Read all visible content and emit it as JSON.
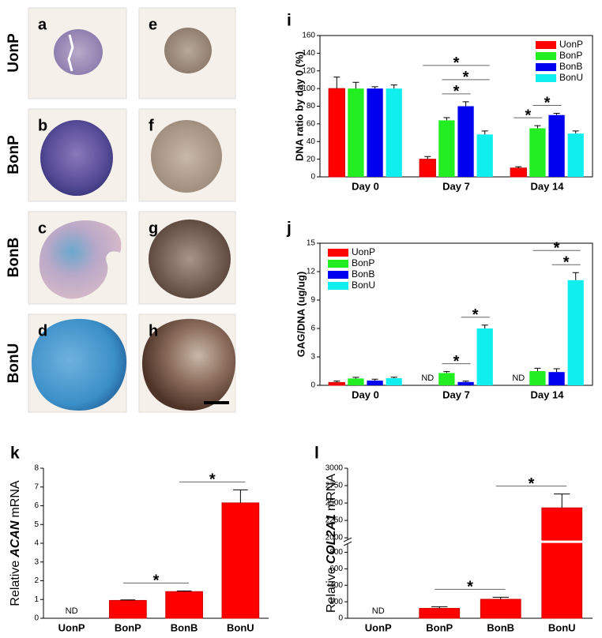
{
  "images": {
    "row_labels": [
      "UonP",
      "BonP",
      "BonB",
      "BonU"
    ],
    "panel_labels": [
      "a",
      "b",
      "c",
      "d",
      "e",
      "f",
      "g",
      "h"
    ]
  },
  "chart_data": [
    {
      "type": "bar",
      "panel": "i",
      "ylabel": "DNA ratio by day 0 (%)",
      "categories": [
        "Day 0",
        "Day 7",
        "Day 14"
      ],
      "series": [
        {
          "name": "UonP",
          "color": "#ff0000",
          "values": [
            100,
            20,
            10
          ],
          "errors": [
            13,
            3,
            1.5
          ]
        },
        {
          "name": "BonP",
          "color": "#22ee22",
          "values": [
            100,
            64,
            55
          ],
          "errors": [
            7,
            3,
            3
          ]
        },
        {
          "name": "BonB",
          "color": "#0000ee",
          "values": [
            100,
            80,
            70
          ],
          "errors": [
            2,
            5,
            2
          ]
        },
        {
          "name": "BonU",
          "color": "#11eeee",
          "values": [
            100,
            48,
            49
          ],
          "errors": [
            4,
            4,
            3
          ]
        }
      ],
      "ylim": [
        0,
        160
      ],
      "yticks": [
        0,
        20,
        40,
        60,
        80,
        100,
        120,
        140,
        160
      ],
      "legend": "upper right",
      "frame": "box",
      "significance": [
        {
          "category": "Day 7",
          "pair": [
            "BonP",
            "BonB"
          ],
          "label": "*"
        },
        {
          "category": "Day 7",
          "pair": [
            "BonP",
            "BonU"
          ],
          "label": "*"
        },
        {
          "category": "Day 7",
          "pair": [
            "UonP",
            "BonU"
          ],
          "label": "*"
        },
        {
          "category": "Day 14",
          "pair": [
            "UonP",
            "BonP"
          ],
          "label": "*"
        },
        {
          "category": "Day 14",
          "pair": [
            "BonP",
            "BonB"
          ],
          "label": "*"
        }
      ]
    },
    {
      "type": "bar",
      "panel": "j",
      "ylabel": "GAG/DNA (ug/ug)",
      "categories": [
        "Day 0",
        "Day 7",
        "Day 14"
      ],
      "series": [
        {
          "name": "UonP",
          "color": "#ff0000",
          "values": [
            0.3,
            null,
            null
          ],
          "errors": [
            0.15,
            null,
            null
          ],
          "value_labels": [
            null,
            "ND",
            "ND"
          ]
        },
        {
          "name": "BonP",
          "color": "#22ee22",
          "values": [
            0.72,
            1.3,
            1.5
          ],
          "errors": [
            0.12,
            0.15,
            0.3
          ]
        },
        {
          "name": "BonB",
          "color": "#0000ee",
          "values": [
            0.5,
            0.35,
            1.4
          ],
          "errors": [
            0.15,
            0.1,
            0.35
          ]
        },
        {
          "name": "BonU",
          "color": "#11eeee",
          "values": [
            0.75,
            6.0,
            11.1
          ],
          "errors": [
            0.1,
            0.35,
            0.8
          ]
        }
      ],
      "ylim": [
        0,
        15
      ],
      "yticks": [
        0,
        3,
        6,
        9,
        12,
        15
      ],
      "legend": "upper left",
      "frame": "box",
      "significance": [
        {
          "category": "Day 7",
          "pair": [
            "BonP",
            "BonB"
          ],
          "label": "*"
        },
        {
          "category": "Day 7",
          "pair": [
            "BonB",
            "BonU"
          ],
          "label": "*"
        },
        {
          "category": "Day 14",
          "pair": [
            "BonB",
            "BonU"
          ],
          "label": "*"
        },
        {
          "category": "Day 14",
          "pair": [
            "BonP",
            "BonU"
          ],
          "label": "*"
        }
      ]
    },
    {
      "type": "bar",
      "panel": "k",
      "ylabel": [
        "Relative",
        "ACAN",
        "mRNA"
      ],
      "categories": [
        "UonP",
        "BonP",
        "BonB",
        "BonU"
      ],
      "values": [
        null,
        0.95,
        1.42,
        6.15
      ],
      "errors": [
        null,
        0.03,
        0.04,
        0.7
      ],
      "value_labels": [
        "ND",
        null,
        null,
        null
      ],
      "color": "#ff0000",
      "ylim": [
        0,
        8
      ],
      "yticks": [
        0,
        1,
        2,
        3,
        4,
        5,
        6,
        7,
        8
      ],
      "frame": "axes",
      "significance": [
        {
          "pair": [
            "BonP",
            "BonB"
          ],
          "label": "*"
        },
        {
          "pair": [
            "BonB",
            "BonU"
          ],
          "label": "*"
        }
      ]
    },
    {
      "type": "bar",
      "panel": "l",
      "ylabel": [
        "Relative",
        "COL2A1",
        "mRNA"
      ],
      "categories": [
        "UonP",
        "BonP",
        "BonB",
        "BonU"
      ],
      "values": [
        null,
        120,
        230,
        2430
      ],
      "errors": [
        null,
        20,
        25,
        200
      ],
      "value_labels": [
        "ND",
        null,
        null,
        null
      ],
      "color": "#ff0000",
      "ylim": [
        0,
        3000
      ],
      "ybreak": [
        880,
        2000
      ],
      "yticks": [
        0,
        200,
        400,
        600,
        800,
        2000,
        2250,
        2500,
        2750,
        3000
      ],
      "frame": "axes",
      "significance": [
        {
          "pair": [
            "BonP",
            "BonB"
          ],
          "label": "*"
        },
        {
          "pair": [
            "BonB",
            "BonU"
          ],
          "label": "*"
        }
      ]
    }
  ]
}
